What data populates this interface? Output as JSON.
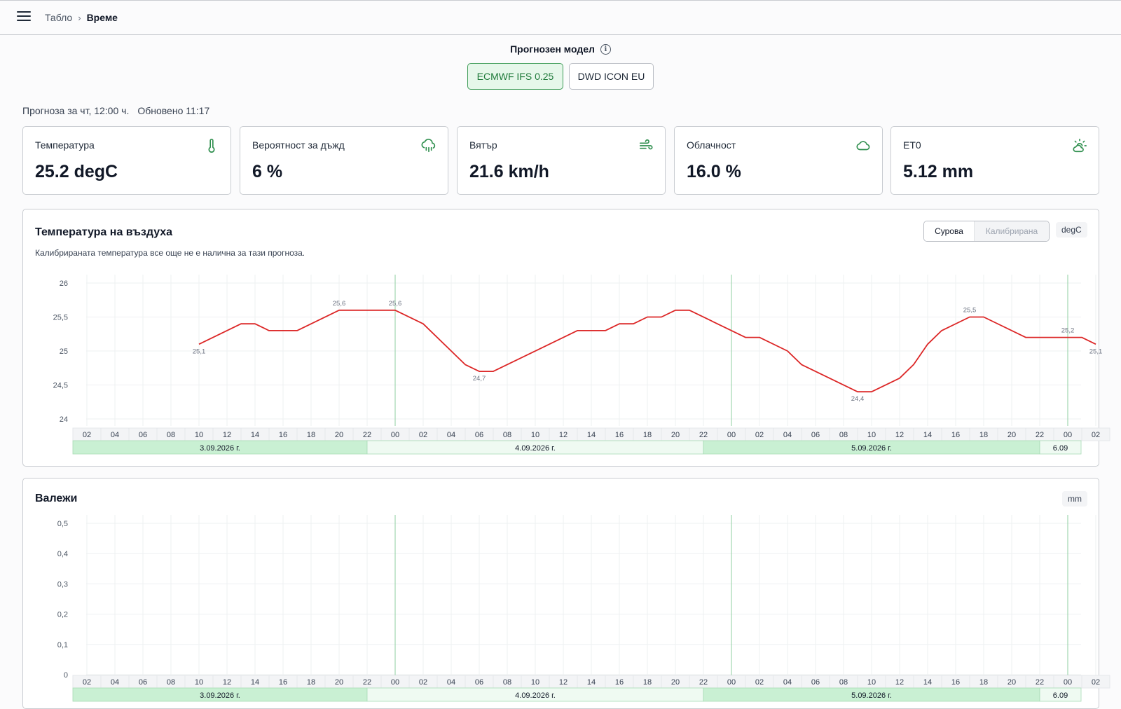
{
  "breadcrumb": {
    "parent": "Табло",
    "separator": "›",
    "current": "Време"
  },
  "model_selector": {
    "title": "Прогнозен модел",
    "info_icon": "info-icon",
    "options": [
      "ECMWF IFS 0.25",
      "DWD ICON EU"
    ],
    "selected": "ECMWF IFS 0.25"
  },
  "forecast": {
    "for_text": "Прогноза за чт, 12:00 ч.",
    "updated_text": "Обновено 11:17"
  },
  "cards": [
    {
      "title": "Температура",
      "value": "25.2 degC",
      "icon": "thermometer-icon"
    },
    {
      "title": "Вероятност за дъжд",
      "value": "6 %",
      "icon": "rain-cloud-icon"
    },
    {
      "title": "Вятър",
      "value": "21.6 km/h",
      "icon": "wind-icon"
    },
    {
      "title": "Облачност",
      "value": "16.0 %",
      "icon": "cloud-icon"
    },
    {
      "title": "ET0",
      "value": "5.12 mm",
      "icon": "sun-cloud-icon"
    }
  ],
  "colors": {
    "accent": "#2f8f4e",
    "line": "#dc2626",
    "day_band_dark": "#c9f0d3",
    "day_band_light": "#effaf2"
  },
  "temp_panel": {
    "title": "Температура на въздуха",
    "subtitle": "Калибрираната температура все още не е налична за тази прогноза.",
    "toggle": [
      "Сурова",
      "Калибрирана"
    ],
    "toggle_selected": "Сурова",
    "unit": "degC"
  },
  "precip_panel": {
    "title": "Валежи",
    "unit": "mm"
  },
  "chart_data": [
    {
      "type": "line",
      "title": "Температура на въздуха",
      "ylim": [
        24,
        26
      ],
      "y_ticks": [
        "26",
        "25,5",
        "25",
        "24,5",
        "24"
      ],
      "x_tick_labels": [
        "02",
        "04",
        "06",
        "08",
        "10",
        "12",
        "14",
        "16",
        "18",
        "20",
        "22",
        "00",
        "02",
        "04",
        "06",
        "08",
        "10",
        "12",
        "14",
        "16",
        "18",
        "20",
        "22",
        "00",
        "02",
        "04",
        "06",
        "08",
        "10",
        "12",
        "14",
        "16",
        "18",
        "20",
        "22",
        "00",
        "02"
      ],
      "days": [
        {
          "label": "3.09.2026 г."
        },
        {
          "label": "4.09.2026 г."
        },
        {
          "label": "5.09.2026 г."
        },
        {
          "label": "6.09"
        }
      ],
      "grid": true,
      "series": [
        {
          "points": [
            [
              "2026-09-03 10:00",
              25.1
            ],
            [
              "2026-09-03 13:00",
              25.4
            ],
            [
              "2026-09-03 14:00",
              25.4
            ],
            [
              "2026-09-03 15:00",
              25.3
            ],
            [
              "2026-09-03 17:00",
              25.3
            ],
            [
              "2026-09-03 20:00",
              25.6
            ],
            [
              "2026-09-04 00:00",
              25.6
            ],
            [
              "2026-09-04 02:00",
              25.4
            ],
            [
              "2026-09-04 05:00",
              24.8
            ],
            [
              "2026-09-04 06:00",
              24.7
            ],
            [
              "2026-09-04 07:00",
              24.7
            ],
            [
              "2026-09-04 13:00",
              25.3
            ],
            [
              "2026-09-04 15:00",
              25.3
            ],
            [
              "2026-09-04 16:00",
              25.4
            ],
            [
              "2026-09-04 17:00",
              25.4
            ],
            [
              "2026-09-04 18:00",
              25.5
            ],
            [
              "2026-09-04 19:00",
              25.5
            ],
            [
              "2026-09-04 20:00",
              25.6
            ],
            [
              "2026-09-04 21:00",
              25.6
            ],
            [
              "2026-09-05 01:00",
              25.2
            ],
            [
              "2026-09-05 02:00",
              25.2
            ],
            [
              "2026-09-05 04:00",
              25.0
            ],
            [
              "2026-09-05 05:00",
              24.8
            ],
            [
              "2026-09-05 09:00",
              24.4
            ],
            [
              "2026-09-05 10:00",
              24.4
            ],
            [
              "2026-09-05 12:00",
              24.6
            ],
            [
              "2026-09-05 13:00",
              24.8
            ],
            [
              "2026-09-05 14:00",
              25.1
            ],
            [
              "2026-09-05 15:00",
              25.3
            ],
            [
              "2026-09-05 17:00",
              25.5
            ],
            [
              "2026-09-05 18:00",
              25.5
            ],
            [
              "2026-09-05 21:00",
              25.2
            ],
            [
              "2026-09-06 01:00",
              25.2
            ],
            [
              "2026-09-06 02:00",
              25.1
            ]
          ]
        }
      ],
      "data_labels": [
        {
          "x": "2026-09-03 10:00",
          "y": 25.1,
          "text": "25,1",
          "pos": "below"
        },
        {
          "x": "2026-09-03 20:00",
          "y": 25.6,
          "text": "25,6",
          "pos": "above"
        },
        {
          "x": "2026-09-04 00:00",
          "y": 25.6,
          "text": "25,6",
          "pos": "above"
        },
        {
          "x": "2026-09-04 06:00",
          "y": 24.7,
          "text": "24,7",
          "pos": "below"
        },
        {
          "x": "2026-09-05 09:00",
          "y": 24.4,
          "text": "24,4",
          "pos": "below"
        },
        {
          "x": "2026-09-05 17:00",
          "y": 25.5,
          "text": "25,5",
          "pos": "above"
        },
        {
          "x": "2026-09-06 00:00",
          "y": 25.2,
          "text": "25,2",
          "pos": "above"
        },
        {
          "x": "2026-09-06 02:00",
          "y": 25.1,
          "text": "25,1",
          "pos": "below"
        }
      ]
    },
    {
      "type": "bar",
      "title": "Валежи",
      "ylim": [
        0,
        0.5
      ],
      "y_ticks": [
        "0,5",
        "0,4",
        "0,3",
        "0,2",
        "0,1",
        "0"
      ],
      "x_tick_labels": [
        "02",
        "04",
        "06",
        "08",
        "10",
        "12",
        "14",
        "16",
        "18",
        "20",
        "22",
        "00",
        "02",
        "04",
        "06",
        "08",
        "10",
        "12",
        "14",
        "16",
        "18",
        "20",
        "22",
        "00",
        "02",
        "04",
        "06",
        "08",
        "10",
        "12",
        "14",
        "16",
        "18",
        "20",
        "22",
        "00",
        "02"
      ],
      "days": [
        {
          "label": "3.09.2026 г."
        },
        {
          "label": "4.09.2026 г."
        },
        {
          "label": "5.09.2026 г."
        },
        {
          "label": "6.09"
        }
      ],
      "grid": true,
      "series": []
    }
  ]
}
